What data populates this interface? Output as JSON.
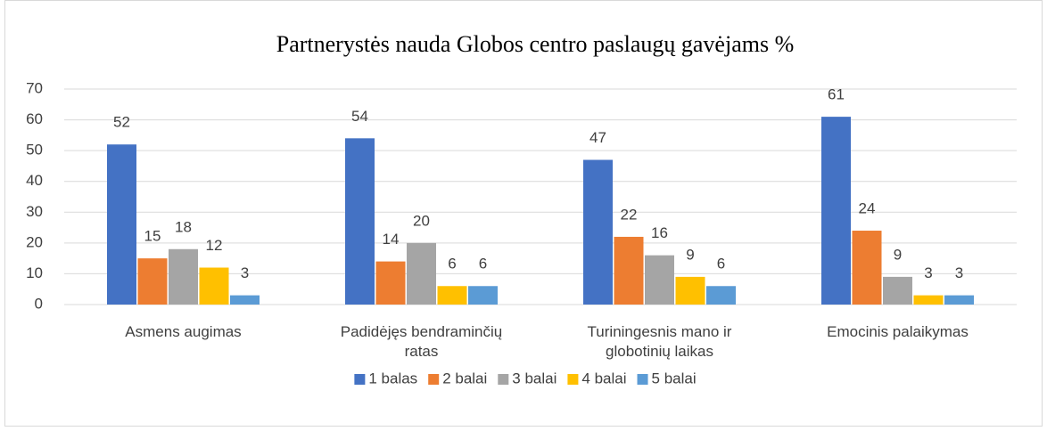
{
  "chart_data": {
    "type": "bar",
    "title": "Partnerystės nauda Globos centro paslaugų gavėjams %",
    "categories": [
      "Asmens augimas",
      "Padidėjęs bendraminčių ratas",
      "Turiningesnis mano ir globotinių laikas",
      "Emocinis palaikymas"
    ],
    "series": [
      {
        "name": "1 balas",
        "color": "#4472c4",
        "values": [
          52,
          54,
          47,
          61
        ]
      },
      {
        "name": "2 balai",
        "color": "#ed7d31",
        "values": [
          15,
          14,
          22,
          24
        ]
      },
      {
        "name": "3 balai",
        "color": "#a5a5a5",
        "values": [
          18,
          20,
          16,
          9
        ]
      },
      {
        "name": "4 balai",
        "color": "#ffc000",
        "values": [
          12,
          6,
          9,
          3
        ]
      },
      {
        "name": "5 balai",
        "color": "#5b9bd5",
        "values": [
          3,
          6,
          6,
          3
        ]
      }
    ],
    "ylim": [
      0,
      70
    ],
    "yticks": [
      0,
      10,
      20,
      30,
      40,
      50,
      60,
      70
    ],
    "grid": true,
    "legend": "bottom"
  }
}
